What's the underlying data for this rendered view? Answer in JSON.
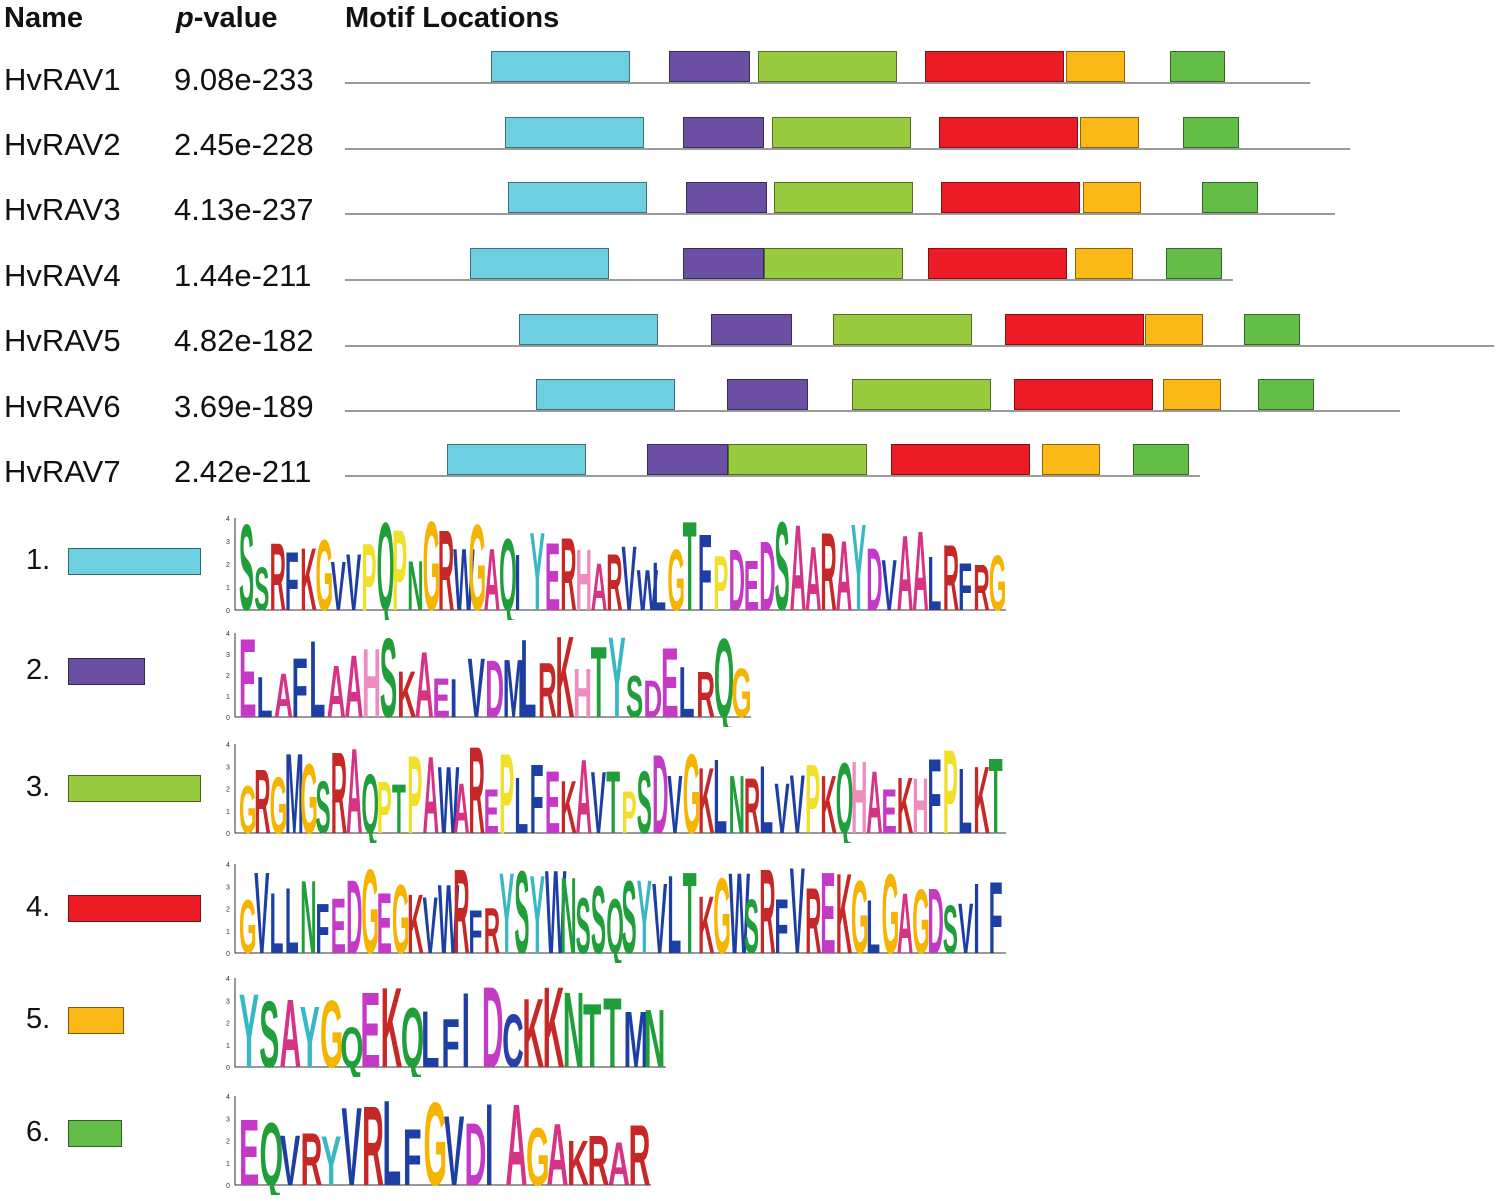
{
  "headers": {
    "name": "Name",
    "pvalue_italic": "p",
    "pvalue_rest": "-value",
    "locations": "Motif Locations"
  },
  "motif_colors": {
    "1": "#6ecfe0",
    "2": "#6a4fa3",
    "3": "#98cb3f",
    "4": "#ec1c24",
    "5": "#fbb917",
    "6": "#63bd46"
  },
  "rows": [
    {
      "name": "HvRAV1",
      "pvalue": "9.08e-233",
      "motifs": [
        1,
        2,
        3,
        4,
        5,
        6
      ]
    },
    {
      "name": "HvRAV2",
      "pvalue": "2.45e-228",
      "motifs": [
        1,
        2,
        3,
        4,
        5,
        6
      ]
    },
    {
      "name": "HvRAV3",
      "pvalue": "4.13e-237",
      "motifs": [
        1,
        2,
        3,
        4,
        5,
        6
      ]
    },
    {
      "name": "HvRAV4",
      "pvalue": "1.44e-211",
      "motifs": [
        1,
        2,
        3,
        4,
        5,
        6
      ]
    },
    {
      "name": "HvRAV5",
      "pvalue": "4.82e-182",
      "motifs": [
        1,
        2,
        3,
        4,
        5,
        6
      ]
    },
    {
      "name": "HvRAV6",
      "pvalue": "3.69e-189",
      "motifs": [
        1,
        2,
        3,
        4,
        5,
        6
      ]
    },
    {
      "name": "HvRAV7",
      "pvalue": "2.42e-211",
      "motifs": [
        1,
        2,
        3,
        4,
        5,
        6
      ]
    }
  ],
  "legend": [
    {
      "num": "1.",
      "motif": 1,
      "logo": "SSRFKGVVPQPNGRWGAQIYERHARVWLGTFPDEDSAARAYDVAALRFRG"
    },
    {
      "num": "2.",
      "motif": 2,
      "logo": "ELAFLAAHSKAEIVDMLRKHTYSDELRQG"
    },
    {
      "num": "3.",
      "motif": 3,
      "logo": "GRGMGSRAQPTPAWAREPLFEKAVTPSDVGKLNRLVVPKQHAEKHFPLKT"
    },
    {
      "num": "4.",
      "motif": 4,
      "logo": "GVLLNFEDGEGKVWRFRYSYWNSSQSYVLTKGWSRFVREKGLGAGDSVIF"
    },
    {
      "num": "5.",
      "motif": 5,
      "logo": "YSAYGQEKQLFIDCKKNTTMN"
    },
    {
      "num": "6.",
      "motif": 6,
      "logo": "EQVRYVRLFGVDIAGAKRAR"
    }
  ]
}
